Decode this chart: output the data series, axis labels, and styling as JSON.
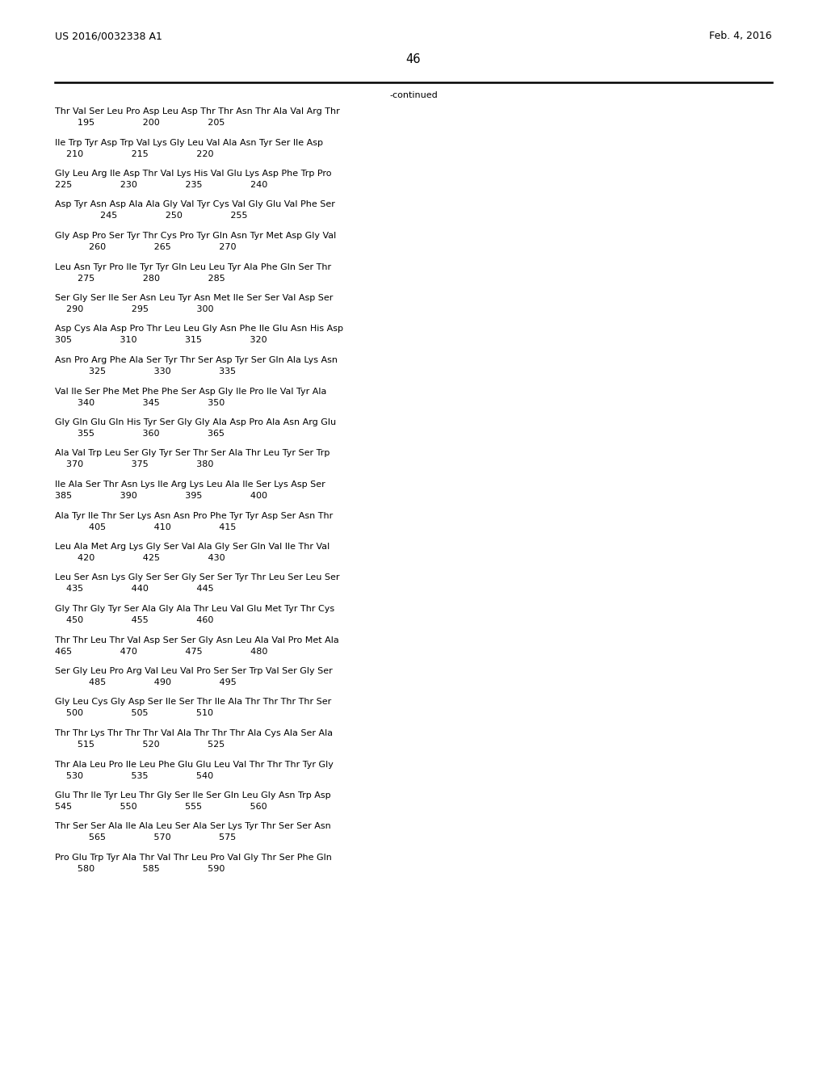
{
  "header_left": "US 2016/0032338 A1",
  "header_right": "Feb. 4, 2016",
  "page_number": "46",
  "continued_label": "-continued",
  "background_color": "#ffffff",
  "text_color": "#000000",
  "font_size": 8.0,
  "header_font_size": 9.0,
  "page_num_font_size": 10.5,
  "sequence_blocks": [
    [
      "Thr Val Ser Leu Pro Asp Leu Asp Thr Thr Asn Thr Ala Val Arg Thr",
      "        195                 200                 205"
    ],
    [
      "Ile Trp Tyr Asp Trp Val Lys Gly Leu Val Ala Asn Tyr Ser Ile Asp",
      "    210                 215                 220"
    ],
    [
      "Gly Leu Arg Ile Asp Thr Val Lys His Val Glu Lys Asp Phe Trp Pro",
      "225                 230                 235                 240"
    ],
    [
      "Asp Tyr Asn Asp Ala Ala Gly Val Tyr Cys Val Gly Glu Val Phe Ser",
      "                245                 250                 255"
    ],
    [
      "Gly Asp Pro Ser Tyr Thr Cys Pro Tyr Gln Asn Tyr Met Asp Gly Val",
      "            260                 265                 270"
    ],
    [
      "Leu Asn Tyr Pro Ile Tyr Tyr Gln Leu Leu Tyr Ala Phe Gln Ser Thr",
      "        275                 280                 285"
    ],
    [
      "Ser Gly Ser Ile Ser Asn Leu Tyr Asn Met Ile Ser Ser Val Asp Ser",
      "    290                 295                 300"
    ],
    [
      "Asp Cys Ala Asp Pro Thr Leu Leu Gly Asn Phe Ile Glu Asn His Asp",
      "305                 310                 315                 320"
    ],
    [
      "Asn Pro Arg Phe Ala Ser Tyr Thr Ser Asp Tyr Ser Gln Ala Lys Asn",
      "            325                 330                 335"
    ],
    [
      "Val Ile Ser Phe Met Phe Phe Ser Asp Gly Ile Pro Ile Val Tyr Ala",
      "        340                 345                 350"
    ],
    [
      "Gly Gln Glu Gln His Tyr Ser Gly Gly Ala Asp Pro Ala Asn Arg Glu",
      "        355                 360                 365"
    ],
    [
      "Ala Val Trp Leu Ser Gly Tyr Ser Thr Ser Ala Thr Leu Tyr Ser Trp",
      "    370                 375                 380"
    ],
    [
      "Ile Ala Ser Thr Asn Lys Ile Arg Lys Leu Ala Ile Ser Lys Asp Ser",
      "385                 390                 395                 400"
    ],
    [
      "Ala Tyr Ile Thr Ser Lys Asn Asn Pro Phe Tyr Tyr Asp Ser Asn Thr",
      "            405                 410                 415"
    ],
    [
      "Leu Ala Met Arg Lys Gly Ser Val Ala Gly Ser Gln Val Ile Thr Val",
      "        420                 425                 430"
    ],
    [
      "Leu Ser Asn Lys Gly Ser Ser Gly Ser Ser Tyr Thr Leu Ser Leu Ser",
      "    435                 440                 445"
    ],
    [
      "Gly Thr Gly Tyr Ser Ala Gly Ala Thr Leu Val Glu Met Tyr Thr Cys",
      "    450                 455                 460"
    ],
    [
      "Thr Thr Leu Thr Val Asp Ser Ser Gly Asn Leu Ala Val Pro Met Ala",
      "465                 470                 475                 480"
    ],
    [
      "Ser Gly Leu Pro Arg Val Leu Val Pro Ser Ser Trp Val Ser Gly Ser",
      "            485                 490                 495"
    ],
    [
      "Gly Leu Cys Gly Asp Ser Ile Ser Thr Ile Ala Thr Thr Thr Thr Ser",
      "    500                 505                 510"
    ],
    [
      "Thr Thr Lys Thr Thr Thr Val Ala Thr Thr Thr Ala Cys Ala Ser Ala",
      "        515                 520                 525"
    ],
    [
      "Thr Ala Leu Pro Ile Leu Phe Glu Glu Leu Val Thr Thr Thr Tyr Gly",
      "    530                 535                 540"
    ],
    [
      "Glu Thr Ile Tyr Leu Thr Gly Ser Ile Ser Gln Leu Gly Asn Trp Asp",
      "545                 550                 555                 560"
    ],
    [
      "Thr Ser Ser Ala Ile Ala Leu Ser Ala Ser Lys Tyr Thr Ser Ser Asn",
      "            565                 570                 575"
    ],
    [
      "Pro Glu Trp Tyr Ala Thr Val Thr Leu Pro Val Gly Thr Ser Phe Gln",
      "        580                 585                 590"
    ]
  ]
}
